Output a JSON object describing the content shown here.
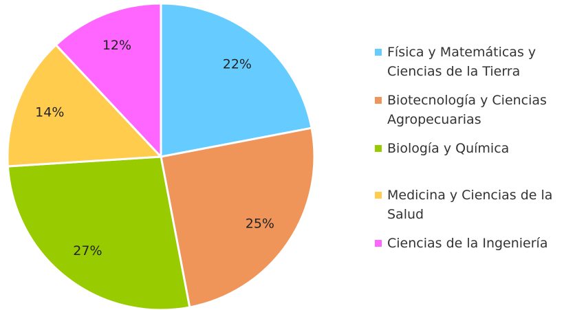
{
  "chart_data": {
    "type": "pie",
    "categories": [
      "Física y Matemáticas y Ciencias de la Tierra",
      "Biotecnología y Ciencias Agropecuarias",
      "Biología y Química",
      "Medicina y Ciencias de la Salud",
      "Ciencias de la Ingeniería"
    ],
    "values": [
      22,
      25,
      27,
      14,
      12
    ],
    "value_labels": [
      "22%",
      "25%",
      "27%",
      "14%",
      "12%"
    ],
    "colors": [
      "#66ccff",
      "#f0955a",
      "#99cc00",
      "#ffcc4d",
      "#ff66ff"
    ],
    "legend": "right"
  }
}
